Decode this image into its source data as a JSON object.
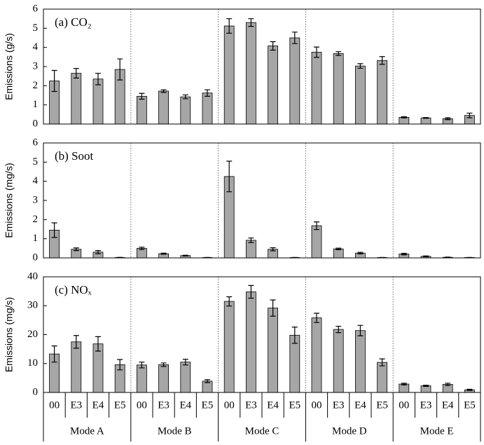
{
  "chart_data": [
    {
      "type": "bar",
      "title": "(a) CO₂",
      "y_label": "Emissions (g/s)",
      "color": "#a6a6a6",
      "values": [
        2.25,
        2.65,
        2.35,
        2.85,
        1.45,
        1.72,
        1.42,
        1.62,
        5.12,
        5.3,
        4.08,
        4.5,
        3.75,
        3.68,
        3.03,
        3.32,
        0.35,
        0.32,
        0.28,
        0.45
      ],
      "errors": [
        0.55,
        0.25,
        0.3,
        0.55,
        0.15,
        0.07,
        0.1,
        0.17,
        0.38,
        0.2,
        0.22,
        0.3,
        0.27,
        0.1,
        0.12,
        0.2,
        0.03,
        0.02,
        0.05,
        0.12
      ],
      "ylim": [
        0,
        6
      ],
      "yticks": [
        0,
        1,
        2,
        3,
        4,
        5,
        6
      ]
    },
    {
      "type": "bar",
      "title": "(b) Soot",
      "y_label": "Emissions (mg/s)",
      "color": "#a6a6a6",
      "values": [
        1.45,
        0.45,
        0.3,
        0.02,
        0.5,
        0.22,
        0.12,
        0.02,
        4.25,
        0.92,
        0.45,
        0.02,
        1.68,
        0.47,
        0.25,
        0.02,
        0.2,
        0.08,
        0.03,
        0.02
      ],
      "errors": [
        0.38,
        0.07,
        0.08,
        0.01,
        0.06,
        0.03,
        0.02,
        0.005,
        0.8,
        0.12,
        0.08,
        0.005,
        0.2,
        0.04,
        0.04,
        0.005,
        0.04,
        0.02,
        0.01,
        0.005
      ],
      "ylim": [
        0,
        6
      ],
      "yticks": [
        0,
        1,
        2,
        3,
        4,
        5,
        6
      ]
    },
    {
      "type": "bar",
      "title": "(c) NOₓ",
      "y_label": "Emissions (mg/s)",
      "color": "#a6a6a6",
      "values": [
        13.3,
        17.5,
        16.8,
        9.6,
        9.5,
        9.6,
        10.5,
        3.9,
        31.5,
        34.8,
        29.2,
        19.8,
        25.8,
        21.8,
        21.4,
        10.4,
        2.9,
        2.3,
        2.8,
        0.9
      ],
      "errors": [
        2.8,
        2.2,
        2.5,
        1.8,
        1.0,
        0.6,
        1.0,
        0.5,
        1.6,
        2.2,
        2.8,
        2.8,
        1.6,
        1.1,
        1.8,
        1.2,
        0.3,
        0.2,
        0.4,
        0.2
      ],
      "ylim": [
        0,
        40
      ],
      "yticks": [
        0,
        10,
        20,
        30,
        40
      ],
      "categories": [
        "00",
        "E3",
        "E4",
        "E5",
        "00",
        "E3",
        "E4",
        "E5",
        "00",
        "E3",
        "E4",
        "E5",
        "00",
        "E3",
        "E4",
        "E5",
        "00",
        "E3",
        "E4",
        "E5"
      ],
      "groups": [
        "Mode A",
        "Mode B",
        "Mode C",
        "Mode D",
        "Mode E"
      ]
    }
  ]
}
